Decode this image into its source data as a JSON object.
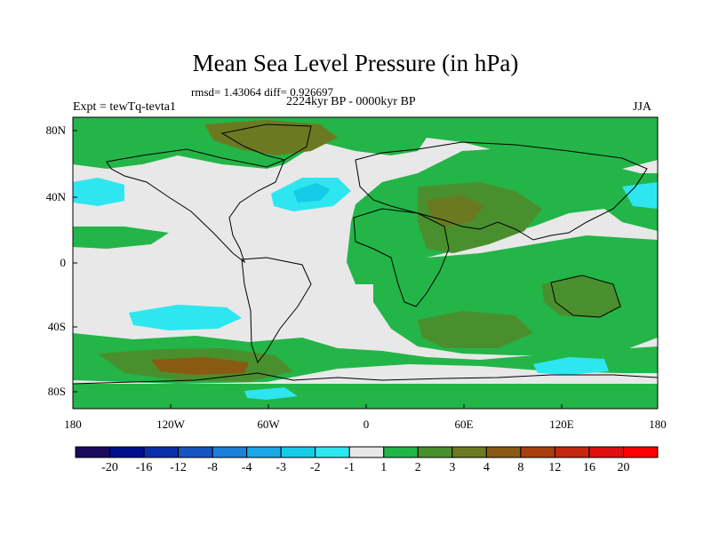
{
  "title": "Mean Sea Level Pressure (in hPa)",
  "stats": "rmsd= 1.43064  diff= 0.926697",
  "experiment": "Expt = tewTq-tevta1",
  "period": "2224kyr BP - 0000kyr BP",
  "season": "JJA",
  "lat_labels": [
    "80N",
    "40N",
    "0",
    "40S",
    "80S"
  ],
  "lon_labels": [
    "180",
    "120W",
    "60W",
    "0",
    "60E",
    "120E",
    "180"
  ],
  "colorbar": {
    "labels": [
      "-20",
      "-16",
      "-12",
      "-8",
      "-4",
      "-3",
      "-2",
      "-1",
      "1",
      "2",
      "3",
      "4",
      "8",
      "12",
      "16",
      "20"
    ],
    "colors": [
      "#1a0a5c",
      "#000e8c",
      "#0b2fa8",
      "#1555c0",
      "#1a80d8",
      "#1aa8e8",
      "#14cce8",
      "#2ee6f0",
      "#e8e8e8",
      "#23b548",
      "#4a8f2e",
      "#6b7a20",
      "#8a5a12",
      "#a8400c",
      "#c42810",
      "#e01010",
      "#ff0000"
    ]
  },
  "map_colors": {
    "neutral": "#e8e8e8",
    "pos1": "#23b548",
    "pos2": "#4a8f2e",
    "pos3": "#6b7a20",
    "pos4": "#8a5a12",
    "neg1": "#2ee6f0",
    "neg2": "#14cce8",
    "coast": "#000000"
  }
}
